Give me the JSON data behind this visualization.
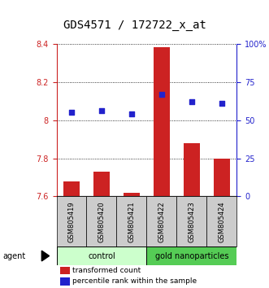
{
  "title": "GDS4571 / 172722_x_at",
  "samples": [
    "GSM805419",
    "GSM805420",
    "GSM805421",
    "GSM805422",
    "GSM805423",
    "GSM805424"
  ],
  "bar_values": [
    7.68,
    7.73,
    7.62,
    8.38,
    7.88,
    7.8
  ],
  "dot_values_pct": [
    55,
    56,
    54,
    67,
    62,
    61
  ],
  "bar_color": "#cc2222",
  "dot_color": "#2222cc",
  "ylim_left": [
    7.6,
    8.4
  ],
  "ylim_right": [
    0,
    100
  ],
  "yticks_left": [
    7.6,
    7.8,
    8.0,
    8.2,
    8.4
  ],
  "yticks_right": [
    0,
    25,
    50,
    75,
    100
  ],
  "bar_baseline": 7.6,
  "control_color": "#ccffcc",
  "gold_color": "#55cc55",
  "sample_box_color": "#cccccc",
  "title_fontsize": 10,
  "tick_fontsize": 7,
  "sample_fontsize": 6,
  "legend_fontsize": 6.5,
  "agent_fontsize": 7,
  "group_fontsize": 7
}
